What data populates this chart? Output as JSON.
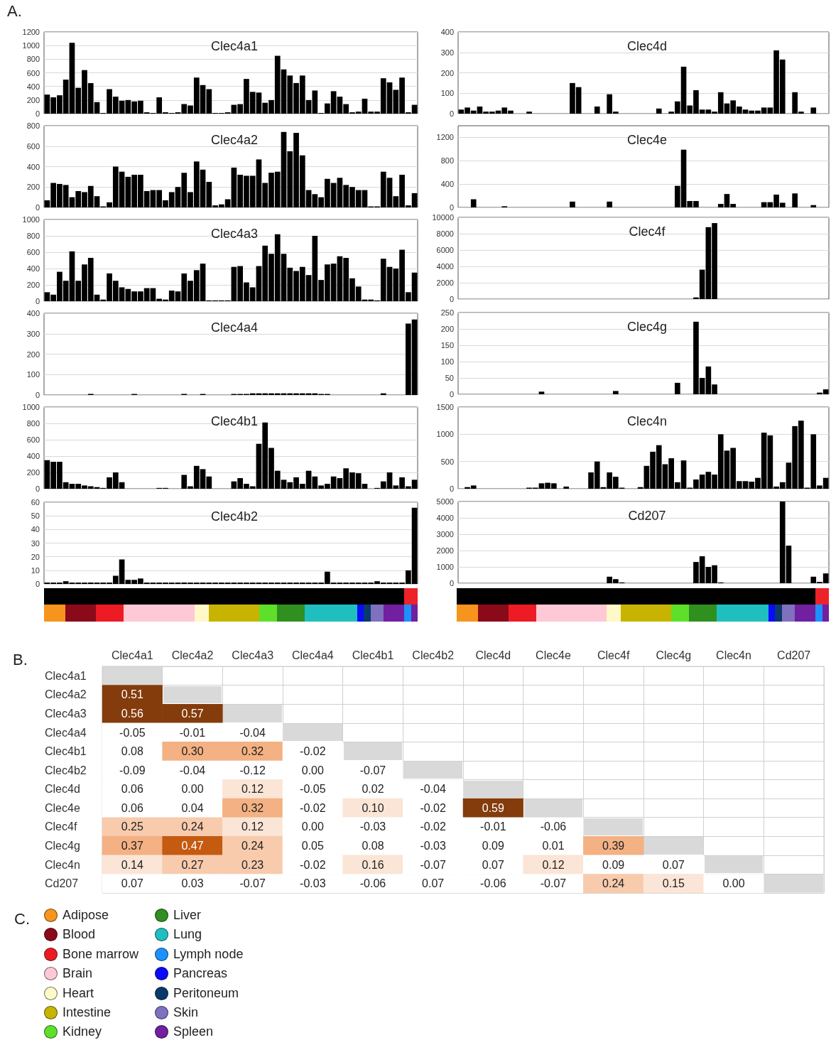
{
  "chart_data": [
    {
      "type": "bar",
      "title": "Clec4a1",
      "annotations": [
        "A."
      ],
      "color": "#000000",
      "ylim": [
        0,
        1200
      ],
      "yticks": [
        0,
        200,
        400,
        600,
        800,
        1000,
        1200
      ],
      "grid": "y",
      "categories": [
        null,
        null,
        null,
        null,
        null,
        null,
        null,
        null,
        null,
        null,
        null,
        null,
        null,
        null,
        null,
        null,
        null,
        null,
        null,
        null,
        null,
        null,
        null,
        null,
        null,
        null,
        null,
        null,
        null,
        null,
        null,
        null,
        null,
        null,
        null,
        null,
        null,
        null,
        null,
        null,
        null,
        null,
        null,
        null,
        null,
        null,
        null,
        null,
        null,
        null,
        null,
        null,
        null,
        null,
        null,
        null,
        null,
        null,
        null,
        null
      ],
      "values": [
        280,
        240,
        270,
        500,
        1040,
        380,
        640,
        450,
        170,
        10,
        360,
        250,
        190,
        200,
        180,
        190,
        20,
        10,
        240,
        20,
        10,
        20,
        140,
        120,
        530,
        420,
        360,
        10,
        10,
        20,
        130,
        140,
        510,
        320,
        310,
        160,
        200,
        850,
        650,
        560,
        450,
        560,
        200,
        340,
        10,
        150,
        330,
        250,
        140,
        20,
        30,
        220,
        30,
        30,
        520,
        460,
        350,
        530,
        20,
        130
      ]
    },
    {
      "type": "bar",
      "title": "Clec4a2",
      "color": "#000000",
      "ylim": [
        0,
        800
      ],
      "yticks": [
        0,
        200,
        400,
        600,
        800
      ],
      "grid": "y",
      "categories": [
        null,
        null,
        null,
        null,
        null,
        null,
        null,
        null,
        null,
        null,
        null,
        null,
        null,
        null,
        null,
        null,
        null,
        null,
        null,
        null,
        null,
        null,
        null,
        null,
        null,
        null,
        null,
        null,
        null,
        null,
        null,
        null,
        null,
        null,
        null,
        null,
        null,
        null,
        null,
        null,
        null,
        null,
        null,
        null,
        null,
        null,
        null,
        null,
        null,
        null,
        null,
        null,
        null,
        null,
        null,
        null,
        null,
        null,
        null,
        null
      ],
      "values": [
        70,
        240,
        230,
        220,
        100,
        160,
        150,
        210,
        110,
        10,
        50,
        400,
        350,
        300,
        320,
        320,
        160,
        170,
        170,
        70,
        150,
        200,
        340,
        150,
        450,
        370,
        250,
        20,
        30,
        80,
        390,
        320,
        310,
        310,
        470,
        240,
        340,
        350,
        740,
        550,
        730,
        510,
        170,
        130,
        100,
        280,
        240,
        290,
        220,
        200,
        170,
        170,
        10,
        10,
        350,
        290,
        110,
        320,
        20,
        140
      ]
    },
    {
      "type": "bar",
      "title": "Clec4a3",
      "color": "#000000",
      "ylim": [
        0,
        1000
      ],
      "yticks": [
        0,
        200,
        400,
        600,
        800,
        1000
      ],
      "grid": "y",
      "categories": [
        null,
        null,
        null,
        null,
        null,
        null,
        null,
        null,
        null,
        null,
        null,
        null,
        null,
        null,
        null,
        null,
        null,
        null,
        null,
        null,
        null,
        null,
        null,
        null,
        null,
        null,
        null,
        null,
        null,
        null,
        null,
        null,
        null,
        null,
        null,
        null,
        null,
        null,
        null,
        null,
        null,
        null,
        null,
        null,
        null,
        null,
        null,
        null,
        null,
        null,
        null,
        null,
        null,
        null,
        null,
        null,
        null,
        null,
        null,
        null
      ],
      "values": [
        110,
        80,
        360,
        250,
        610,
        250,
        450,
        530,
        80,
        20,
        340,
        250,
        170,
        150,
        120,
        120,
        160,
        160,
        30,
        20,
        130,
        120,
        340,
        250,
        380,
        460,
        10,
        10,
        10,
        10,
        420,
        430,
        230,
        170,
        430,
        680,
        580,
        820,
        580,
        410,
        370,
        420,
        320,
        800,
        260,
        450,
        460,
        550,
        530,
        280,
        180,
        20,
        20,
        10,
        520,
        420,
        400,
        630,
        110,
        350
      ]
    },
    {
      "type": "bar",
      "title": "Clec4a4",
      "color": "#000000",
      "ylim": [
        0,
        400
      ],
      "yticks": [
        0,
        100,
        200,
        300,
        400
      ],
      "grid": "y",
      "categories": [
        null,
        null,
        null,
        null,
        null,
        null,
        null,
        null,
        null,
        null,
        null,
        null,
        null,
        null,
        null,
        null,
        null,
        null,
        null,
        null,
        null,
        null,
        null,
        null,
        null,
        null,
        null,
        null,
        null,
        null,
        null,
        null,
        null,
        null,
        null,
        null,
        null,
        null,
        null,
        null,
        null,
        null,
        null,
        null,
        null,
        null,
        null,
        null,
        null,
        null,
        null,
        null,
        null,
        null,
        null,
        null,
        null,
        null,
        null,
        null
      ],
      "values": [
        0,
        0,
        0,
        0,
        0,
        0,
        0,
        5,
        0,
        0,
        0,
        0,
        0,
        0,
        5,
        0,
        0,
        0,
        0,
        0,
        0,
        0,
        5,
        0,
        0,
        5,
        0,
        0,
        0,
        0,
        5,
        5,
        5,
        8,
        8,
        8,
        8,
        8,
        8,
        8,
        8,
        8,
        8,
        8,
        5,
        5,
        0,
        0,
        0,
        0,
        0,
        0,
        0,
        0,
        8,
        0,
        0,
        0,
        350,
        370
      ]
    },
    {
      "type": "bar",
      "title": "Clec4b1",
      "color": "#000000",
      "ylim": [
        0,
        1000
      ],
      "yticks": [
        0,
        200,
        400,
        600,
        800,
        1000
      ],
      "grid": "y",
      "categories": [
        null,
        null,
        null,
        null,
        null,
        null,
        null,
        null,
        null,
        null,
        null,
        null,
        null,
        null,
        null,
        null,
        null,
        null,
        null,
        null,
        null,
        null,
        null,
        null,
        null,
        null,
        null,
        null,
        null,
        null,
        null,
        null,
        null,
        null,
        null,
        null,
        null,
        null,
        null,
        null,
        null,
        null,
        null,
        null,
        null,
        null,
        null,
        null,
        null,
        null,
        null,
        null,
        null,
        null,
        null,
        null,
        null,
        null,
        null,
        null
      ],
      "values": [
        350,
        330,
        330,
        80,
        60,
        60,
        40,
        30,
        20,
        10,
        140,
        200,
        80,
        0,
        0,
        0,
        0,
        0,
        10,
        10,
        0,
        0,
        170,
        30,
        280,
        240,
        150,
        0,
        0,
        0,
        90,
        130,
        60,
        30,
        550,
        810,
        500,
        220,
        110,
        80,
        140,
        60,
        220,
        150,
        40,
        60,
        150,
        130,
        250,
        200,
        190,
        60,
        0,
        10,
        90,
        200,
        40,
        140,
        30,
        110
      ]
    },
    {
      "type": "bar",
      "title": "Clec4b2",
      "color": "#000000",
      "ylim": [
        0,
        60
      ],
      "yticks": [
        0,
        10,
        20,
        30,
        40,
        50,
        60
      ],
      "grid": "y",
      "categories": [
        null,
        null,
        null,
        null,
        null,
        null,
        null,
        null,
        null,
        null,
        null,
        null,
        null,
        null,
        null,
        null,
        null,
        null,
        null,
        null,
        null,
        null,
        null,
        null,
        null,
        null,
        null,
        null,
        null,
        null,
        null,
        null,
        null,
        null,
        null,
        null,
        null,
        null,
        null,
        null,
        null,
        null,
        null,
        null,
        null,
        null,
        null,
        null,
        null,
        null,
        null,
        null,
        null,
        null,
        null,
        null,
        null,
        null,
        null,
        null
      ],
      "values": [
        1,
        1,
        1,
        2,
        1,
        1,
        1,
        1,
        1,
        1,
        1,
        6,
        18,
        3,
        3,
        4,
        1,
        1,
        1,
        1,
        1,
        1,
        1,
        1,
        1,
        1,
        1,
        1,
        1,
        1,
        1,
        1,
        1,
        1,
        1,
        1,
        1,
        1,
        1,
        1,
        1,
        1,
        1,
        1,
        1,
        9,
        1,
        1,
        1,
        1,
        1,
        1,
        1,
        2,
        1,
        1,
        1,
        1,
        10,
        56
      ]
    },
    {
      "type": "bar",
      "title": "Clec4d",
      "color": "#000000",
      "ylim": [
        0,
        400
      ],
      "yticks": [
        0,
        100,
        200,
        300,
        400
      ],
      "grid": "y",
      "categories": [
        null,
        null,
        null,
        null,
        null,
        null,
        null,
        null,
        null,
        null,
        null,
        null,
        null,
        null,
        null,
        null,
        null,
        null,
        null,
        null,
        null,
        null,
        null,
        null,
        null,
        null,
        null,
        null,
        null,
        null,
        null,
        null,
        null,
        null,
        null,
        null,
        null,
        null,
        null,
        null,
        null,
        null,
        null,
        null,
        null,
        null,
        null,
        null,
        null,
        null,
        null,
        null,
        null,
        null,
        null,
        null,
        null,
        null,
        null,
        null
      ],
      "values": [
        20,
        30,
        15,
        35,
        10,
        10,
        15,
        30,
        15,
        0,
        0,
        10,
        0,
        0,
        0,
        0,
        0,
        0,
        150,
        130,
        0,
        0,
        35,
        0,
        95,
        10,
        0,
        0,
        0,
        0,
        0,
        0,
        25,
        0,
        10,
        60,
        230,
        40,
        115,
        20,
        20,
        10,
        105,
        50,
        65,
        35,
        20,
        15,
        15,
        30,
        30,
        310,
        265,
        0,
        105,
        10,
        0,
        30,
        0,
        0
      ]
    },
    {
      "type": "bar",
      "title": "Clec4e",
      "color": "#000000",
      "ylim": [
        0,
        1400
      ],
      "yticks": [
        0,
        400,
        800,
        1200
      ],
      "grid": "y",
      "categories": [
        null,
        null,
        null,
        null,
        null,
        null,
        null,
        null,
        null,
        null,
        null,
        null,
        null,
        null,
        null,
        null,
        null,
        null,
        null,
        null,
        null,
        null,
        null,
        null,
        null,
        null,
        null,
        null,
        null,
        null,
        null,
        null,
        null,
        null,
        null,
        null,
        null,
        null,
        null,
        null,
        null,
        null,
        null,
        null,
        null,
        null,
        null,
        null,
        null,
        null,
        null,
        null,
        null,
        null,
        null,
        null,
        null,
        null,
        null,
        null
      ],
      "values": [
        0,
        0,
        140,
        0,
        0,
        0,
        0,
        20,
        0,
        0,
        0,
        0,
        0,
        0,
        0,
        0,
        0,
        0,
        100,
        0,
        0,
        0,
        0,
        0,
        100,
        0,
        0,
        0,
        0,
        0,
        0,
        0,
        0,
        0,
        0,
        370,
        990,
        110,
        110,
        0,
        0,
        0,
        60,
        230,
        60,
        0,
        0,
        0,
        0,
        90,
        90,
        220,
        80,
        0,
        240,
        0,
        0,
        40,
        0,
        0
      ]
    },
    {
      "type": "bar",
      "title": "Clec4f",
      "color": "#000000",
      "ylim": [
        0,
        10000
      ],
      "yticks": [
        0,
        2000,
        4000,
        6000,
        8000,
        10000
      ],
      "grid": "y",
      "categories": [
        null,
        null,
        null,
        null,
        null,
        null,
        null,
        null,
        null,
        null,
        null,
        null,
        null,
        null,
        null,
        null,
        null,
        null,
        null,
        null,
        null,
        null,
        null,
        null,
        null,
        null,
        null,
        null,
        null,
        null,
        null,
        null,
        null,
        null,
        null,
        null,
        null,
        null,
        null,
        null,
        null,
        null,
        null,
        null,
        null,
        null,
        null,
        null,
        null,
        null,
        null,
        null,
        null,
        null,
        null,
        null,
        null,
        null,
        null,
        null
      ],
      "values": [
        0,
        0,
        0,
        0,
        0,
        0,
        0,
        0,
        0,
        0,
        0,
        0,
        0,
        0,
        0,
        0,
        0,
        0,
        0,
        0,
        0,
        0,
        0,
        0,
        0,
        0,
        0,
        0,
        0,
        0,
        0,
        0,
        0,
        0,
        0,
        0,
        0,
        0,
        200,
        3600,
        8800,
        9300,
        0,
        0,
        0,
        0,
        0,
        0,
        0,
        0,
        0,
        0,
        0,
        0,
        0,
        0,
        0,
        0,
        0,
        0
      ]
    },
    {
      "type": "bar",
      "title": "Clec4g",
      "color": "#000000",
      "ylim": [
        0,
        250
      ],
      "yticks": [
        0,
        50,
        100,
        150,
        200,
        250
      ],
      "grid": "y",
      "categories": [
        null,
        null,
        null,
        null,
        null,
        null,
        null,
        null,
        null,
        null,
        null,
        null,
        null,
        null,
        null,
        null,
        null,
        null,
        null,
        null,
        null,
        null,
        null,
        null,
        null,
        null,
        null,
        null,
        null,
        null,
        null,
        null,
        null,
        null,
        null,
        null,
        null,
        null,
        null,
        null,
        null,
        null,
        null,
        null,
        null,
        null,
        null,
        null,
        null,
        null,
        null,
        null,
        null,
        null,
        null,
        null,
        null,
        null,
        null,
        null
      ],
      "values": [
        0,
        0,
        0,
        0,
        0,
        0,
        0,
        0,
        0,
        0,
        0,
        0,
        0,
        8,
        0,
        0,
        0,
        0,
        0,
        0,
        0,
        0,
        0,
        0,
        0,
        10,
        0,
        0,
        0,
        0,
        0,
        0,
        0,
        0,
        0,
        35,
        0,
        0,
        222,
        50,
        85,
        30,
        0,
        0,
        0,
        0,
        0,
        0,
        0,
        0,
        0,
        0,
        0,
        0,
        0,
        0,
        0,
        0,
        5,
        15
      ]
    },
    {
      "type": "bar",
      "title": "Clec4n",
      "color": "#000000",
      "ylim": [
        0,
        1500
      ],
      "yticks": [
        0,
        500,
        1000,
        1500
      ],
      "grid": "y",
      "categories": [
        null,
        null,
        null,
        null,
        null,
        null,
        null,
        null,
        null,
        null,
        null,
        null,
        null,
        null,
        null,
        null,
        null,
        null,
        null,
        null,
        null,
        null,
        null,
        null,
        null,
        null,
        null,
        null,
        null,
        null,
        null,
        null,
        null,
        null,
        null,
        null,
        null,
        null,
        null,
        null,
        null,
        null,
        null,
        null,
        null,
        null,
        null,
        null,
        null,
        null,
        null,
        null,
        null,
        null,
        null,
        null,
        null,
        null,
        null,
        null
      ],
      "values": [
        0,
        30,
        60,
        0,
        0,
        0,
        0,
        0,
        0,
        0,
        0,
        20,
        20,
        100,
        110,
        100,
        0,
        40,
        0,
        0,
        0,
        300,
        500,
        30,
        300,
        220,
        20,
        0,
        0,
        30,
        420,
        680,
        800,
        450,
        560,
        120,
        520,
        20,
        170,
        260,
        310,
        260,
        1000,
        700,
        750,
        140,
        140,
        130,
        200,
        1030,
        980,
        40,
        120,
        480,
        1150,
        1250,
        20,
        1000,
        60,
        200
      ]
    },
    {
      "type": "bar",
      "title": "Cd207",
      "color": "#000000",
      "ylim": [
        0,
        5000
      ],
      "yticks": [
        0,
        1000,
        2000,
        3000,
        4000,
        5000
      ],
      "grid": "y",
      "categories": [
        null,
        null,
        null,
        null,
        null,
        null,
        null,
        null,
        null,
        null,
        null,
        null,
        null,
        null,
        null,
        null,
        null,
        null,
        null,
        null,
        null,
        null,
        null,
        null,
        null,
        null,
        null,
        null,
        null,
        null,
        null,
        null,
        null,
        null,
        null,
        null,
        null,
        null,
        null,
        null,
        null,
        null,
        null,
        null,
        null,
        null,
        null,
        null,
        null,
        null,
        null,
        null,
        null,
        null,
        null,
        null,
        null,
        null,
        null,
        null
      ],
      "values": [
        0,
        0,
        0,
        0,
        0,
        0,
        0,
        0,
        0,
        0,
        0,
        0,
        0,
        0,
        0,
        0,
        0,
        0,
        0,
        0,
        0,
        0,
        0,
        0,
        400,
        250,
        50,
        0,
        0,
        0,
        0,
        0,
        0,
        0,
        0,
        0,
        0,
        0,
        1300,
        1650,
        1000,
        1100,
        50,
        0,
        0,
        0,
        0,
        0,
        0,
        0,
        0,
        0,
        5000,
        2300,
        0,
        0,
        0,
        400,
        80,
        600
      ]
    },
    {
      "type": "heatmap",
      "annotations": [
        "B."
      ],
      "categories": [
        "Clec4a1",
        "Clec4a2",
        "Clec4a3",
        "Clec4a4",
        "Clec4b1",
        "Clec4b2",
        "Clec4d",
        "Clec4e",
        "Clec4f",
        "Clec4g",
        "Clec4n",
        "Cd207"
      ],
      "y_categories": [
        "Clec4a1",
        "Clec4a2",
        "Clec4a3",
        "Clec4a4",
        "Clec4b1",
        "Clec4b2",
        "Clec4d",
        "Clec4e",
        "Clec4f",
        "Clec4g",
        "Clec4n",
        "Cd207"
      ],
      "cells": [
        [
          null,
          null,
          null,
          null,
          null,
          null,
          null,
          null,
          null,
          null,
          null,
          null
        ],
        [
          0.51,
          null,
          null,
          null,
          null,
          null,
          null,
          null,
          null,
          null,
          null,
          null
        ],
        [
          0.56,
          0.57,
          null,
          null,
          null,
          null,
          null,
          null,
          null,
          null,
          null,
          null
        ],
        [
          -0.05,
          -0.01,
          -0.04,
          null,
          null,
          null,
          null,
          null,
          null,
          null,
          null,
          null
        ],
        [
          0.08,
          0.3,
          0.32,
          -0.02,
          null,
          null,
          null,
          null,
          null,
          null,
          null,
          null
        ],
        [
          -0.09,
          -0.04,
          -0.12,
          0.0,
          -0.07,
          null,
          null,
          null,
          null,
          null,
          null,
          null
        ],
        [
          0.06,
          0.0,
          0.12,
          -0.05,
          0.02,
          -0.04,
          null,
          null,
          null,
          null,
          null,
          null
        ],
        [
          0.06,
          0.04,
          0.32,
          -0.02,
          0.1,
          -0.02,
          0.59,
          null,
          null,
          null,
          null,
          null
        ],
        [
          0.25,
          0.24,
          0.12,
          0.0,
          -0.03,
          -0.02,
          -0.01,
          -0.06,
          null,
          null,
          null,
          null
        ],
        [
          0.37,
          0.47,
          0.24,
          0.05,
          0.08,
          -0.03,
          0.09,
          0.01,
          0.39,
          null,
          null,
          null
        ],
        [
          0.14,
          0.27,
          0.23,
          -0.02,
          0.16,
          -0.07,
          0.07,
          0.12,
          0.09,
          0.07,
          null,
          null
        ],
        [
          0.07,
          0.03,
          -0.07,
          -0.03,
          -0.06,
          0.07,
          -0.06,
          -0.07,
          0.24,
          0.15,
          0.0,
          null
        ]
      ],
      "cell_labels": [
        [
          null,
          null,
          null,
          null,
          null,
          null,
          null,
          null,
          null,
          null,
          null,
          null
        ],
        [
          "0.51",
          null,
          null,
          null,
          null,
          null,
          null,
          null,
          null,
          null,
          null,
          null
        ],
        [
          "0.56",
          "0.57",
          null,
          null,
          null,
          null,
          null,
          null,
          null,
          null,
          null,
          null
        ],
        [
          "-0.05",
          "-0.01",
          "-0.04",
          null,
          null,
          null,
          null,
          null,
          null,
          null,
          null,
          null
        ],
        [
          "0.08",
          "0.30",
          "0.32",
          "-0.02",
          null,
          null,
          null,
          null,
          null,
          null,
          null,
          null
        ],
        [
          "-0.09",
          "-0.04",
          "-0.12",
          "0.00",
          "-0.07",
          null,
          null,
          null,
          null,
          null,
          null,
          null
        ],
        [
          "0.06",
          "0.00",
          "0.12",
          "-0.05",
          "0.02",
          "-0.04",
          null,
          null,
          null,
          null,
          null,
          null
        ],
        [
          "0.06",
          "0.04",
          "0.32",
          "-0.02",
          "0.10",
          "-0.02",
          "0.59",
          null,
          null,
          null,
          null,
          null
        ],
        [
          "0.25",
          "0.24",
          "0.12",
          "0.00",
          "-0.03",
          "-0.02",
          "-0.01",
          "-0.06",
          null,
          null,
          null,
          null
        ],
        [
          "0.37",
          "0.47",
          "0.24",
          "0.05",
          "0.08",
          "-0.03",
          "0.09",
          "0.01",
          "0.39",
          null,
          null,
          null
        ],
        [
          "0.14",
          "0.27",
          "0.23",
          "-0.02",
          "0.16",
          "-0.07",
          "0.07",
          "0.12",
          "0.09",
          "0.07",
          null,
          null
        ],
        [
          "0.07",
          "0.03",
          "-0.07",
          "-0.03",
          "-0.06",
          "0.07",
          "-0.06",
          "-0.07",
          "0.24",
          "0.15",
          "0.00",
          null
        ]
      ]
    },
    {
      "type": "other",
      "annotations": [
        "C."
      ],
      "categories": [
        "Adipose",
        "Blood",
        "Bone marrow",
        "Brain",
        "Heart",
        "Intestine",
        "Kidney",
        "Liver",
        "Lung",
        "Lymph node",
        "Pancreas",
        "Peritoneum",
        "Skin",
        "Spleen"
      ],
      "colors": [
        "#f7941d",
        "#8b0a1a",
        "#ed1c24",
        "#ffc8d6",
        "#fff8c8",
        "#c8b400",
        "#5ee02a",
        "#2f8f1f",
        "#1fbfbf",
        "#1e90ff",
        "#0a0aff",
        "#0a3a6a",
        "#8070c0",
        "#7020a0"
      ]
    }
  ]
}
